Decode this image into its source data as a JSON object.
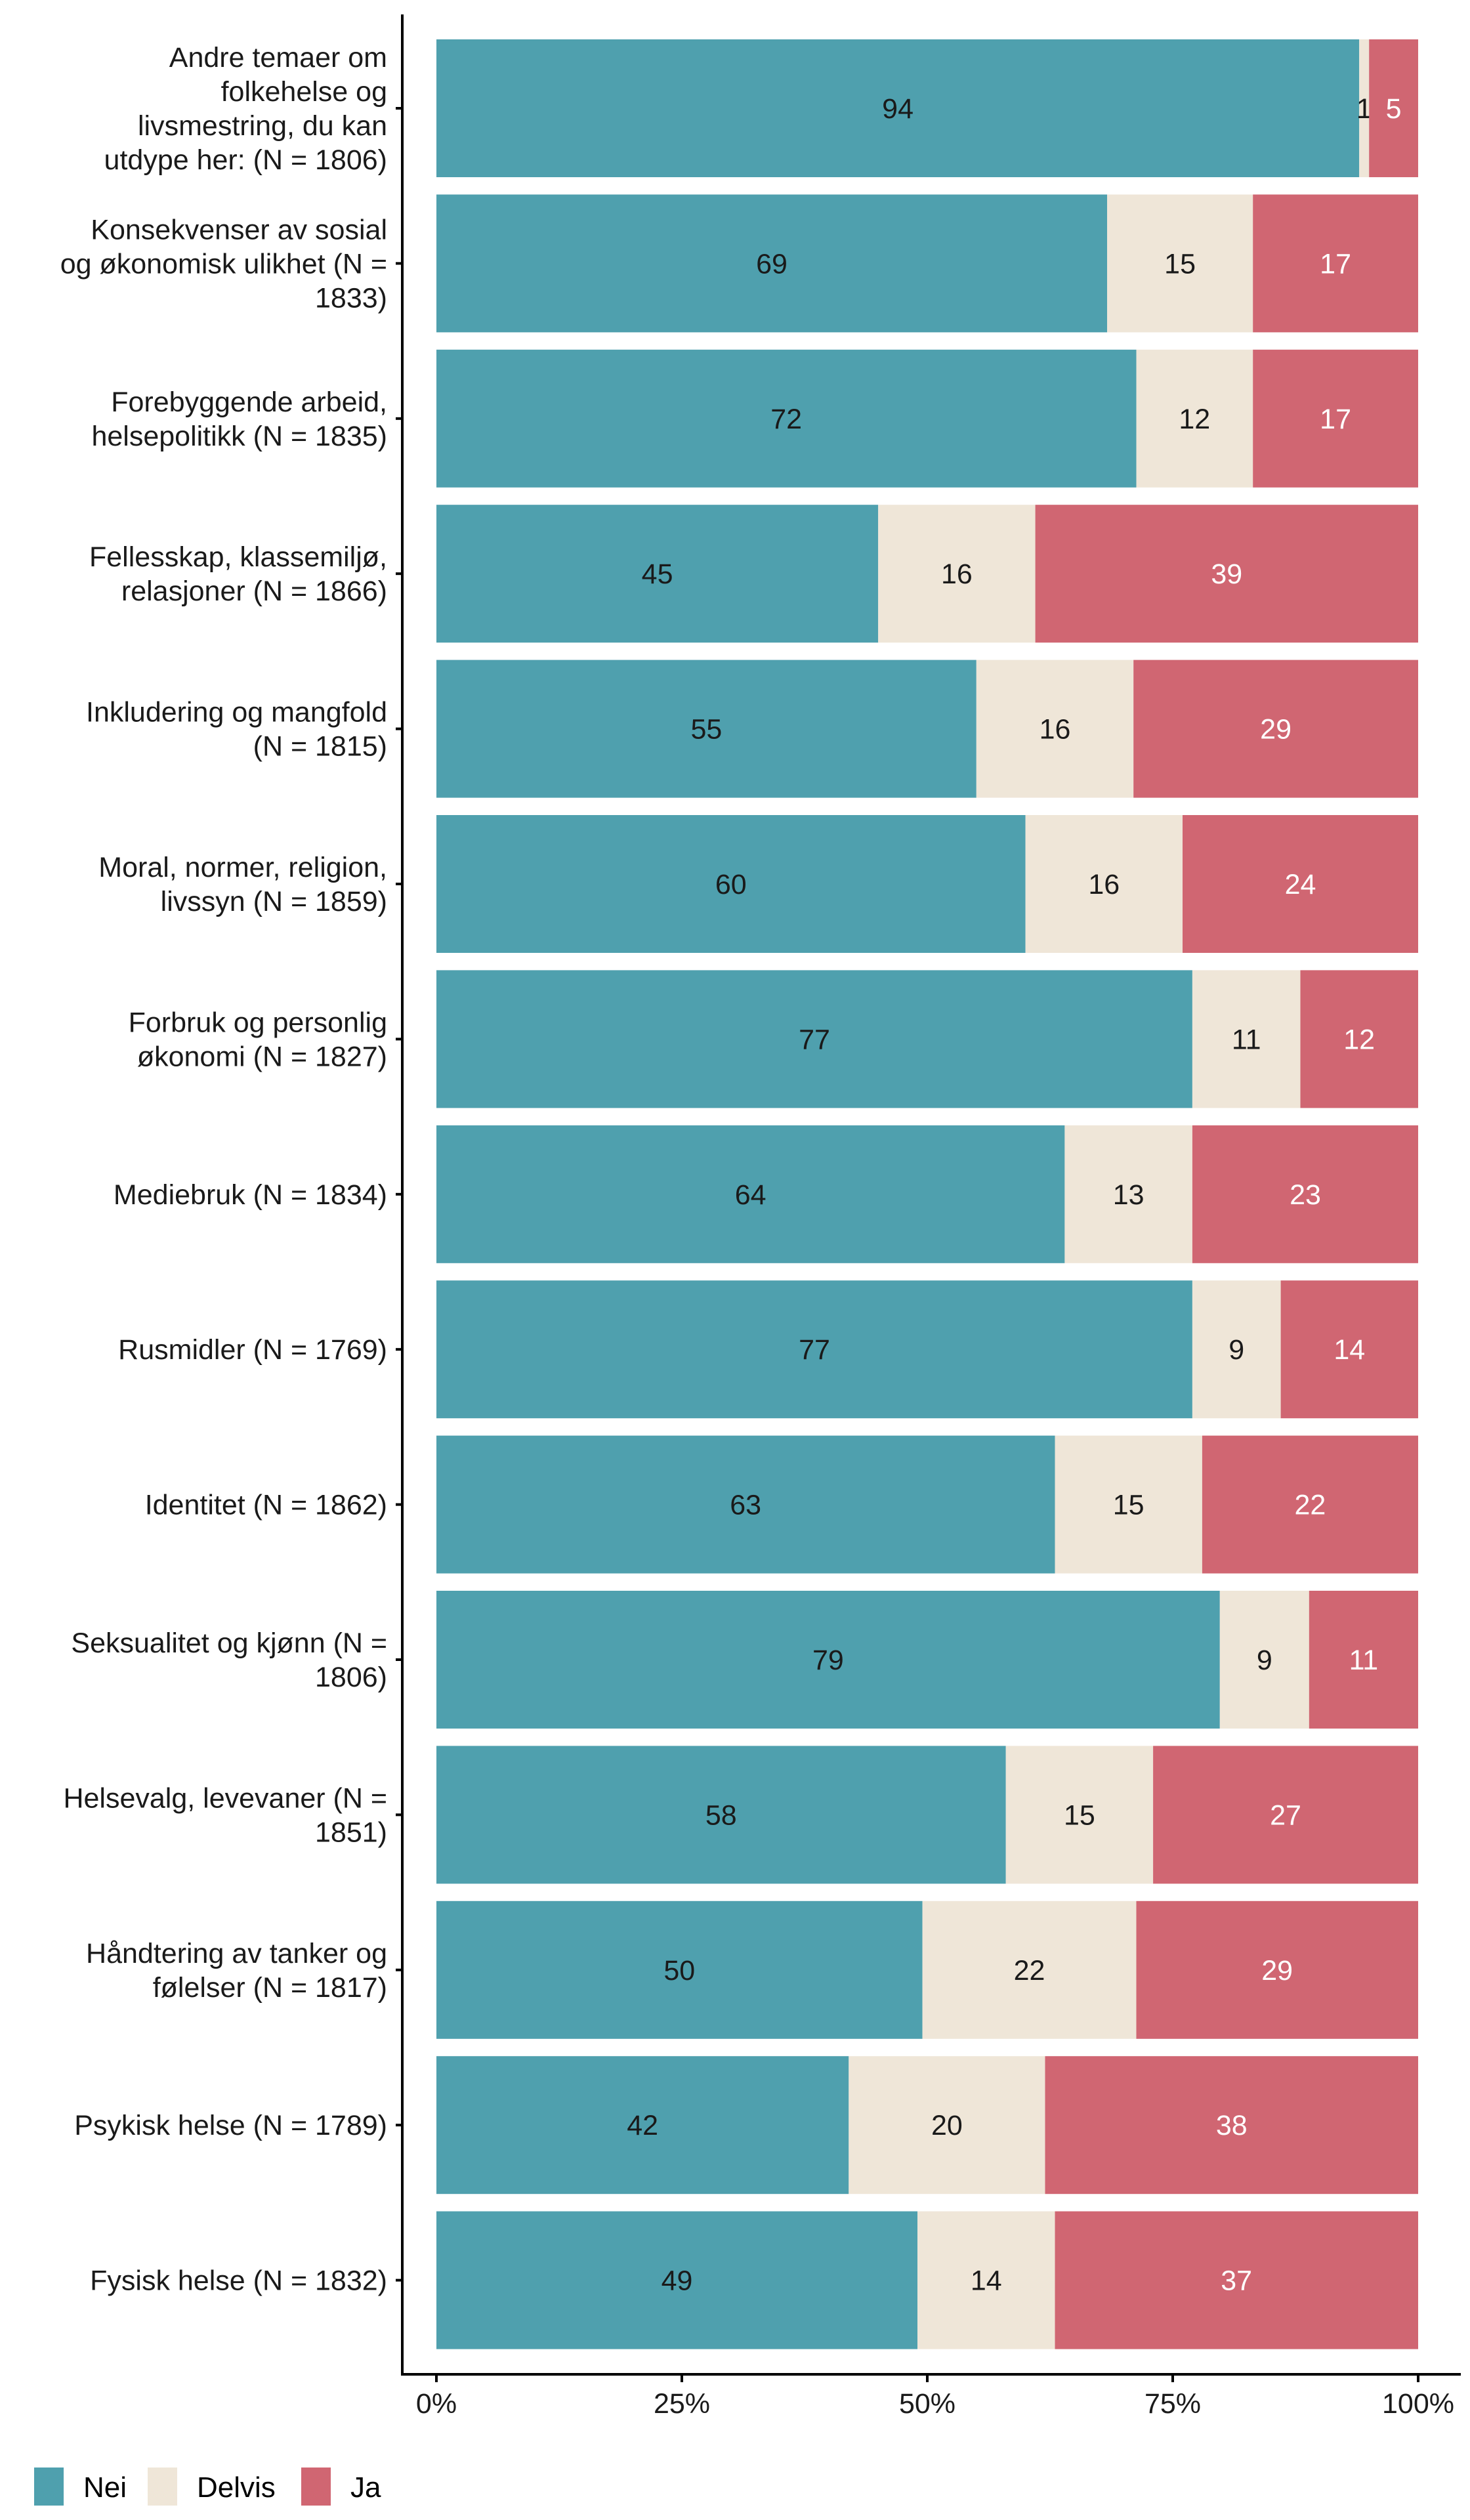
{
  "chart_data": {
    "type": "bar",
    "orientation": "horizontal",
    "stacked": true,
    "normalized": true,
    "title": "",
    "xlabel": "",
    "ylabel": "",
    "xlim": [
      0,
      100
    ],
    "x_ticks": [
      "0%",
      "25%",
      "50%",
      "75%",
      "100%"
    ],
    "x_tick_values": [
      0,
      25,
      50,
      75,
      100
    ],
    "grid": false,
    "legend_position": "bottom-left",
    "categories": [
      [
        "Andre temaer om",
        "folkehelse og",
        "livsmestring, du kan",
        "utdype her: (N = 1806)"
      ],
      [
        "Konsekvenser av sosial",
        "og økonomisk ulikhet (N =",
        "1833)"
      ],
      [
        "Forebyggende arbeid,",
        "helsepolitikk (N = 1835)"
      ],
      [
        "Fellesskap, klassemiljø,",
        "relasjoner (N = 1866)"
      ],
      [
        "Inkludering og mangfold",
        "(N = 1815)"
      ],
      [
        "Moral, normer, religion,",
        "livssyn (N = 1859)"
      ],
      [
        "Forbruk og personlig",
        "økonomi (N = 1827)"
      ],
      [
        "Mediebruk (N = 1834)"
      ],
      [
        "Rusmidler (N = 1769)"
      ],
      [
        "Identitet (N = 1862)"
      ],
      [
        "Seksualitet og kjønn (N =",
        "1806)"
      ],
      [
        "Helsevalg, levevaner (N =",
        "1851)"
      ],
      [
        "Håndtering av tanker og",
        "følelser (N = 1817)"
      ],
      [
        "Psykisk helse (N = 1789)"
      ],
      [
        "Fysisk helse (N = 1832)"
      ]
    ],
    "series": [
      {
        "name": "Nei",
        "color": "#4fa0ae",
        "label_color": "#1a1a1a",
        "values": [
          94,
          69,
          72,
          45,
          55,
          60,
          77,
          64,
          77,
          63,
          79,
          58,
          50,
          42,
          49
        ]
      },
      {
        "name": "Delvis",
        "color": "#efe6d8",
        "label_color": "#1a1a1a",
        "values": [
          1,
          15,
          12,
          16,
          16,
          16,
          11,
          13,
          9,
          15,
          9,
          15,
          22,
          20,
          14
        ]
      },
      {
        "name": "Ja",
        "color": "#d06672",
        "label_color": "#ffffff",
        "values": [
          5,
          17,
          17,
          39,
          29,
          24,
          12,
          23,
          14,
          22,
          11,
          27,
          29,
          38,
          37
        ]
      }
    ]
  },
  "legend": {
    "items": [
      {
        "label": "Nei",
        "color": "#4fa0ae"
      },
      {
        "label": "Delvis",
        "color": "#efe6d8"
      },
      {
        "label": "Ja",
        "color": "#d06672"
      }
    ]
  }
}
